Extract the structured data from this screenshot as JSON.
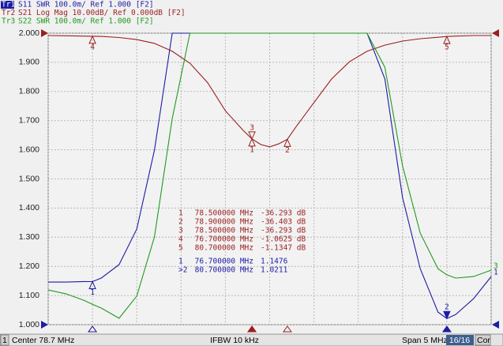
{
  "chart_data": {
    "type": "line",
    "header": [
      {
        "trace": "Tr1",
        "text": "S11 SWR 100.0m/ Ref 1.000 [F2]"
      },
      {
        "trace": "Tr2",
        "text": "S21 Log Mag 10.00dB/ Ref 0.000dB [F2]"
      },
      {
        "trace": "Tr3",
        "text": "S22 SWR 100.0m/ Ref 1.000 [F2]"
      }
    ],
    "x": [
      76.2,
      76.4,
      76.6,
      76.7,
      76.8,
      77.0,
      77.2,
      77.4,
      77.6,
      77.8,
      78.0,
      78.2,
      78.4,
      78.5,
      78.6,
      78.7,
      78.8,
      78.9,
      79.0,
      79.2,
      79.4,
      79.6,
      79.8,
      80.0,
      80.2,
      80.4,
      80.6,
      80.7,
      80.8,
      81.0,
      81.2
    ],
    "xlim": [
      76.2,
      81.2
    ],
    "xticks": [
      76.2,
      76.7,
      77.2,
      77.7,
      78.2,
      78.7,
      79.2,
      79.7,
      80.2,
      80.7,
      81.2
    ],
    "ylim": [
      1,
      2
    ],
    "yticks": [
      {
        "value": 1,
        "label": "1.000"
      },
      {
        "value": 1.1,
        "label": "1.100"
      },
      {
        "value": 1.2,
        "label": "1.200"
      },
      {
        "value": 1.3,
        "label": "1.300"
      },
      {
        "value": 1.4,
        "label": "1.400"
      },
      {
        "value": 1.5,
        "label": "1.500"
      },
      {
        "value": 1.6,
        "label": "1.600"
      },
      {
        "value": 1.7,
        "label": "1.700"
      },
      {
        "value": 1.8,
        "label": "1.800"
      },
      {
        "value": 1.9,
        "label": "1.900"
      },
      {
        "value": 2,
        "label": "2.000"
      }
    ],
    "y2lim": [
      -100,
      0
    ],
    "grid": true,
    "series": [
      {
        "name": "S11",
        "color": "#1c1ca6",
        "end_label": "1",
        "values": [
          1.146,
          1.146,
          1.148,
          1.1476,
          1.16,
          1.206,
          1.328,
          1.599,
          2,
          2,
          2,
          2,
          2,
          2,
          2,
          2,
          2,
          2,
          2,
          2,
          2,
          2,
          2,
          1.843,
          1.436,
          1.192,
          1.043,
          1.0211,
          1.035,
          1.089,
          1.165
        ]
      },
      {
        "name": "S21",
        "color": "#9a1f1f",
        "axis": "y2",
        "values": [
          -0.8,
          -0.9,
          -1.0,
          -1.0625,
          -1.1,
          -1.5,
          -2.2,
          -3.5,
          -6.2,
          -10.3,
          -17,
          -26.6,
          -33.3,
          -36.293,
          -38.2,
          -39,
          -38,
          -36.403,
          -32,
          -23.8,
          -15.7,
          -9.8,
          -6.2,
          -4.1,
          -2.7,
          -1.9,
          -1.4,
          -1.1347,
          -1.0,
          -0.8,
          -0.8
        ]
      },
      {
        "name": "S22",
        "color": "#1f9a1f",
        "end_label": "3",
        "values": [
          1.119,
          1.106,
          1.084,
          1.07,
          1.057,
          1.022,
          1.098,
          1.301,
          1.707,
          2,
          2,
          2,
          2,
          2,
          2,
          2,
          2,
          2,
          2,
          2,
          2,
          2,
          2,
          1.883,
          1.545,
          1.314,
          1.192,
          1.171,
          1.16,
          1.165,
          1.187
        ]
      }
    ],
    "marker_tables": [
      {
        "color": "#9a1f1f",
        "rows": [
          {
            "id": "1",
            "tag": "1",
            "freq": "78.500000 MHz",
            "value": "-36.293 dB"
          },
          {
            "id": "2",
            "tag": "2",
            "freq": "78.900000 MHz",
            "value": "-36.403 dB"
          },
          {
            "id": "3",
            "tag": "3",
            "freq": "78.500000 MHz",
            "value": "-36.293 dB"
          },
          {
            "id": "4",
            "tag": "4",
            "freq": "76.700000 MHz",
            "value": "-1.0625 dB"
          },
          {
            "id": "5",
            "tag": "5",
            "freq": "80.700000 MHz",
            "value": "-1.1347 dB"
          }
        ]
      },
      {
        "color": "#1c1ca6",
        "rows": [
          {
            "id": "1",
            "tag": "1",
            "freq": "76.700000 MHz",
            "value": "1.1476"
          },
          {
            "id": ">2",
            "tag": "2",
            "freq": "80.700000 MHz",
            "value": "1.0211"
          }
        ]
      }
    ],
    "status": {
      "channel": "1",
      "center": "Center 78.7 MHz",
      "ifbw": "IFBW 10 kHz",
      "span": "Span 5 MHz",
      "count": "16/16",
      "cor": "Cor"
    }
  }
}
